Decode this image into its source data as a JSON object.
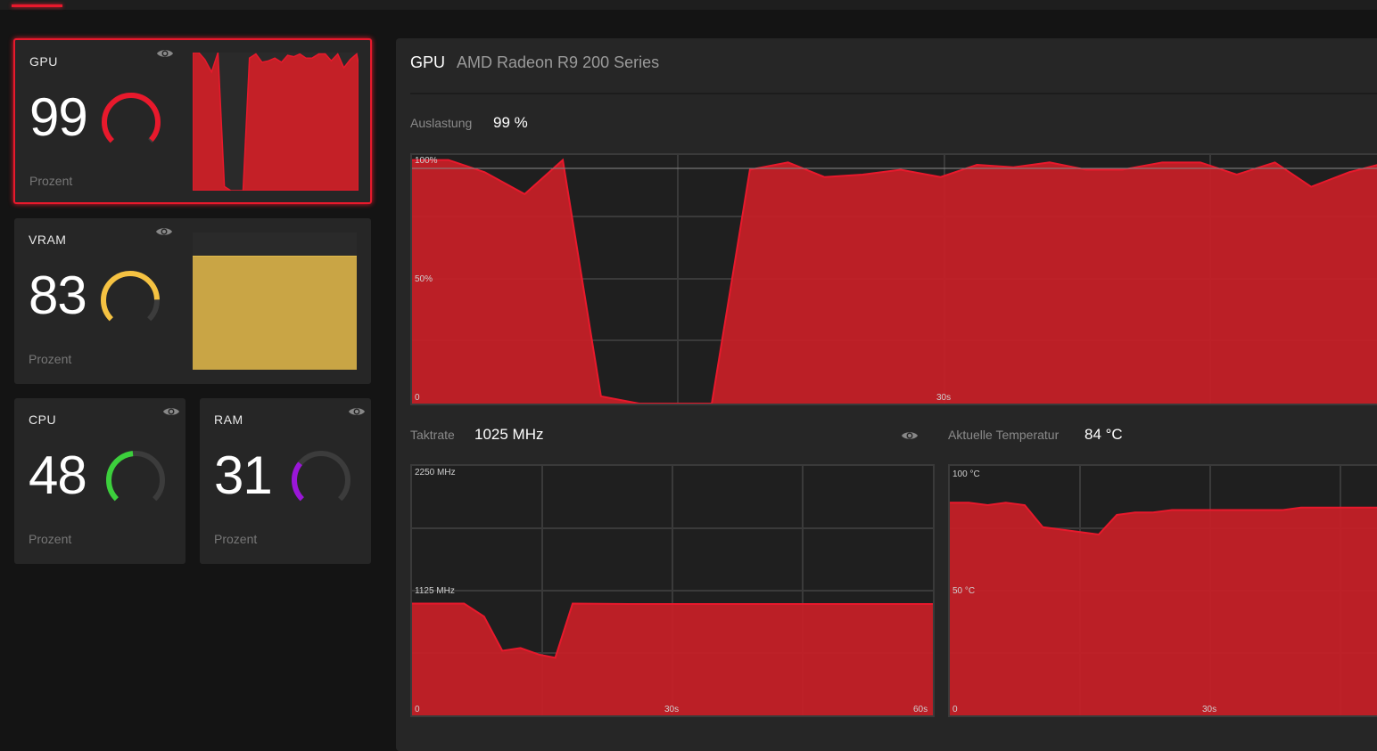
{
  "colors": {
    "accent": "#e8192c",
    "chart_fill": "#c42027",
    "gpu": "#e8192c",
    "vram": "#f5c242",
    "cpu": "#3ccf3c",
    "ram": "#9a16d8"
  },
  "cards": [
    {
      "label": "GPU",
      "value": "99",
      "unit": "Prozent",
      "percent": 99,
      "icon": "eye-icon"
    },
    {
      "label": "VRAM",
      "value": "83",
      "unit": "Prozent",
      "percent": 83,
      "icon": "eye-icon"
    },
    {
      "label": "CPU",
      "value": "48",
      "unit": "Prozent",
      "percent": 48,
      "icon": "eye-icon"
    },
    {
      "label": "RAM",
      "value": "31",
      "unit": "Prozent",
      "percent": 31,
      "icon": "eye-icon"
    }
  ],
  "panel": {
    "title": "GPU",
    "subtitle": "AMD Radeon R9 200 Series"
  },
  "chart_data": [
    {
      "type": "area",
      "label": "Auslastung",
      "current": "99 %",
      "y_ticks": [
        "100%",
        "50%",
        "0"
      ],
      "x_ticks": [
        "30s"
      ],
      "ylim": [
        0,
        100
      ],
      "x": [
        0,
        2,
        4,
        6.2,
        8.3,
        10.4,
        12.5,
        16.5,
        18.6,
        20.7,
        22.7,
        24.8,
        26.9,
        29.1,
        31.1,
        33.1,
        35.1,
        37.1,
        39.1,
        41.3,
        43.4,
        45.4,
        47.5,
        49.5,
        51.6,
        53.7,
        54.3
      ],
      "y": [
        100,
        100,
        95,
        86,
        100,
        3,
        0,
        0,
        96,
        99,
        93,
        94,
        96,
        93,
        98,
        97,
        99,
        96,
        96,
        99,
        99,
        94,
        99,
        89,
        95,
        99,
        92
      ]
    },
    {
      "type": "area",
      "label": "Taktrate",
      "current": "1025 MHz",
      "y_ticks": [
        "2250 MHz",
        "1125 MHz",
        "0"
      ],
      "x_ticks": [
        "30s",
        "60s"
      ],
      "ylim": [
        0,
        2250
      ],
      "xlim": [
        0,
        60
      ],
      "x": [
        0,
        6,
        8.3,
        10.4,
        12.5,
        14.6,
        16.5,
        18.5,
        25,
        40,
        60
      ],
      "y": [
        1029,
        1029,
        910,
        595,
        620,
        560,
        530,
        1029,
        1025,
        1025,
        1025
      ]
    },
    {
      "type": "area",
      "label": "Aktuelle Temperatur",
      "current": "84 °C",
      "y_ticks": [
        "100 °C",
        "50 °C",
        "0"
      ],
      "x_ticks": [
        "30s"
      ],
      "ylim": [
        0,
        100
      ],
      "x": [
        0,
        2.1,
        4.2,
        6.2,
        8.3,
        10.3,
        12.4,
        16.5,
        18.5,
        20.5,
        22.5,
        24.6,
        30,
        36.9,
        38.9,
        49
      ],
      "y": [
        87,
        87,
        86,
        87,
        86,
        77,
        76,
        74,
        82,
        83,
        83,
        84,
        84,
        84,
        85,
        85
      ]
    }
  ]
}
